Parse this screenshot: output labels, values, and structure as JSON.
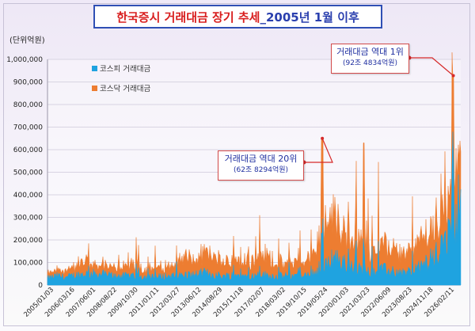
{
  "title": {
    "red": "한국증시 거래대금 장기 추세",
    "blue": "_2005년 1월 이후"
  },
  "chart_data": {
    "type": "area",
    "unit_label": "(단위억원)",
    "ylim": [
      0,
      1000000
    ],
    "y_ticks": [
      "0",
      "100,000",
      "200,000",
      "300,000",
      "400,000",
      "500,000",
      "600,000",
      "700,000",
      "800,000",
      "900,000",
      "1,000,000"
    ],
    "x_tick_labels": [
      "2005/01/03",
      "2006/03/16",
      "2007/06/01",
      "2008/08/22",
      "2009/10/30",
      "2011/01/11",
      "2012/03/27",
      "2013/06/12",
      "2014/08/29",
      "2015/11/18",
      "2017/02/07",
      "2018/03/02",
      "2019/10/15",
      "2019/05/24",
      "2020/01/03",
      "2021/03/23",
      "2022/06/09",
      "2023/08/23",
      "2024/11/18",
      "2026/02/11"
    ],
    "series": [
      {
        "name": "코스피 거래대금",
        "color": "#1fa3e0",
        "values": [
          30000,
          40000,
          35000,
          45000,
          50000,
          50000,
          45000,
          40000,
          40000,
          45000,
          35000,
          35000,
          40000,
          40000,
          45000,
          45000,
          55000,
          45000,
          40000,
          45000,
          40000,
          40000,
          45000,
          40000,
          40000,
          45000,
          35000,
          55000,
          65000,
          130000,
          100000,
          75000,
          70000,
          65000,
          70000,
          60000,
          55000,
          60000,
          80000,
          120000,
          150000,
          250000,
          380000
        ]
      },
      {
        "name": "코스닥 거래대금",
        "color": "#ed7d31",
        "values": [
          20000,
          25000,
          30000,
          45000,
          60000,
          35000,
          35000,
          40000,
          40000,
          55000,
          35000,
          40000,
          40000,
          60000,
          80000,
          60000,
          90000,
          80000,
          55000,
          80000,
          75000,
          70000,
          90000,
          70000,
          50000,
          60000,
          60000,
          90000,
          160000,
          200000,
          150000,
          120000,
          130000,
          100000,
          120000,
          100000,
          80000,
          90000,
          120000,
          130000,
          150000,
          200000,
          200000
        ]
      }
    ],
    "peaks": [
      {
        "series_total": 650000,
        "position": 0.665
      },
      {
        "series_total": 630000,
        "position": 0.765
      },
      {
        "series_total": 928000,
        "position": 0.982
      }
    ],
    "annotations": [
      {
        "line1": "거래대금 역대 1위",
        "line2": "(92조 4834억원)"
      },
      {
        "line1": "거래대금 역대 20위",
        "line2": "(62조 8294억원)"
      }
    ]
  }
}
